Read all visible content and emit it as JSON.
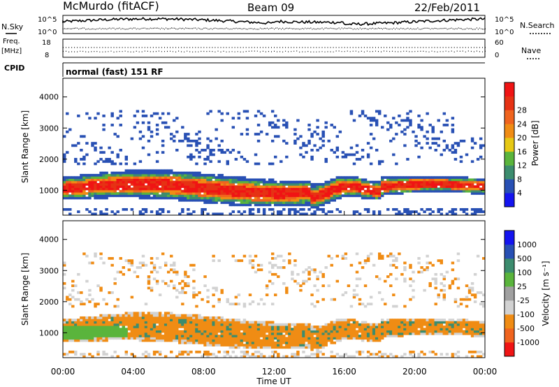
{
  "header": {
    "station": "McMurdo (fitACF)",
    "beam": "Beam 09",
    "date": "22/Feb/2011",
    "cpid_label": "CPID",
    "cpid_value": "normal (fast) 151 RF"
  },
  "panels": {
    "nsky": {
      "left_label": "N.Sky",
      "right_label": "N.Search",
      "left_ticks": [
        "10^5",
        "10^0"
      ],
      "right_ticks": [
        "10^5",
        "10^0"
      ]
    },
    "freq": {
      "left_label_1": "Freq.",
      "left_label_2": "[MHz]",
      "right_label": "Nave",
      "left_ticks": [
        "18",
        "8"
      ],
      "right_ticks": [
        "60",
        "0"
      ]
    }
  },
  "colors": {
    "power": [
      "#1414f0",
      "#2850b4",
      "#3c8c6e",
      "#5ab43c",
      "#e6c814",
      "#f08c14",
      "#f0641e",
      "#e63214",
      "#f01414"
    ],
    "velocity": [
      "#f01414",
      "#f0641e",
      "#f08c14",
      "#d2d2d2",
      "#a0a0a0",
      "#5ab43c",
      "#3c8c6e",
      "#2850b4",
      "#1414f0"
    ]
  },
  "chart_data": [
    {
      "type": "heatmap",
      "name": "Power",
      "ylabel": "Slant Range [km]",
      "yticks": [
        1000,
        2000,
        3000,
        4000
      ],
      "ylim": [
        200,
        4600
      ],
      "colorbar_label": "Power [dB]",
      "colorbar_ticks": [
        "4",
        "8",
        "12",
        "16",
        "20",
        "24",
        "28"
      ]
    },
    {
      "type": "heatmap",
      "name": "Velocity",
      "ylabel": "Slant Range [km]",
      "yticks": [
        1000,
        2000,
        3000,
        4000
      ],
      "ylim": [
        200,
        4600
      ],
      "colorbar_label": "Velocity [m s⁻¹]",
      "colorbar_ticks": [
        "-1000",
        "-500",
        "-100",
        "-25",
        "25",
        "100",
        "500",
        "1000"
      ],
      "xlabel": "Time UT",
      "xticks": [
        "00:00",
        "04:00",
        "08:00",
        "12:00",
        "16:00",
        "20:00",
        "00:00"
      ]
    }
  ]
}
